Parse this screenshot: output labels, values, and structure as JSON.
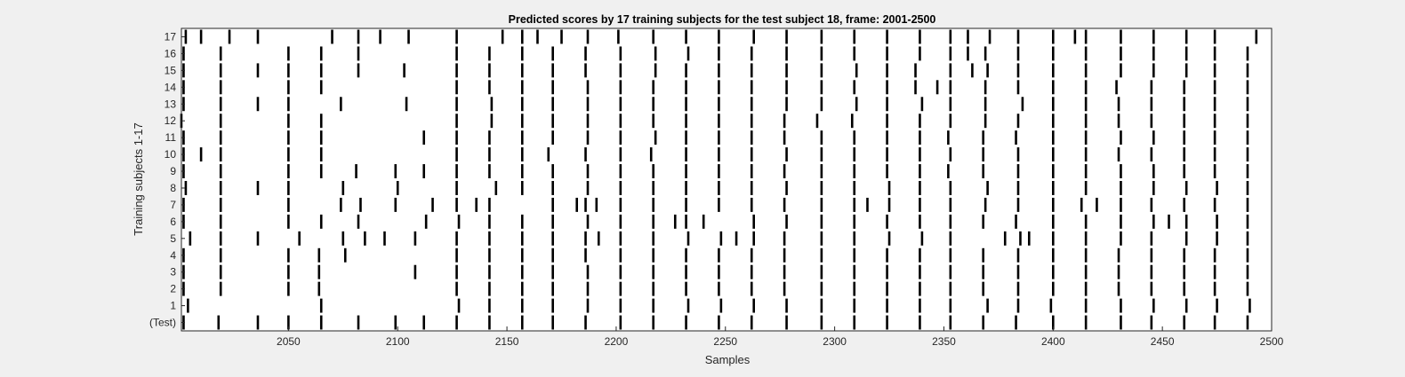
{
  "colors": {
    "figure_background": "#f0f0f0",
    "axes_background": "#ffffff",
    "event_line": "#000000",
    "text": "#262626"
  },
  "chart_data": {
    "type": "raster",
    "title": "Predicted scores by 17 training subjects for the test subject 18, frame: 2001-2500",
    "xlabel": "Samples",
    "ylabel": "Training subjects 1-17",
    "xlim": [
      2001,
      2500
    ],
    "xticks": [
      2050,
      2100,
      2150,
      2200,
      2250,
      2300,
      2350,
      2400,
      2450,
      2500
    ],
    "yticklabels": [
      "(Test)",
      "1",
      "2",
      "3",
      "4",
      "5",
      "6",
      "7",
      "8",
      "9",
      "10",
      "11",
      "12",
      "13",
      "14",
      "15",
      "16",
      "17"
    ],
    "grid": false,
    "legend": "none",
    "rows": [
      {
        "label": "(Test)",
        "events": [
          2002,
          2018,
          2036,
          2050,
          2065,
          2082,
          2099,
          2112,
          2127,
          2142,
          2157,
          2171,
          2186,
          2202,
          2217,
          2232,
          2247,
          2262,
          2278,
          2294,
          2309,
          2324,
          2339,
          2353,
          2368,
          2383,
          2400,
          2415,
          2431,
          2445,
          2460,
          2474,
          2489
        ]
      },
      {
        "label": "1",
        "events": [
          2004,
          2065,
          2128,
          2142,
          2157,
          2171,
          2187,
          2202,
          2217,
          2233,
          2248,
          2263,
          2278,
          2294,
          2309,
          2324,
          2339,
          2353,
          2370,
          2384,
          2399,
          2415,
          2431,
          2446,
          2461,
          2475,
          2490
        ]
      },
      {
        "label": "2",
        "events": [
          2002,
          2019,
          2050,
          2064,
          2127,
          2142,
          2157,
          2171,
          2187,
          2202,
          2217,
          2232,
          2247,
          2262,
          2277,
          2294,
          2309,
          2324,
          2339,
          2353,
          2368,
          2384,
          2400,
          2415,
          2430,
          2445,
          2460,
          2474,
          2489
        ]
      },
      {
        "label": "3",
        "events": [
          2002,
          2019,
          2050,
          2064,
          2108,
          2127,
          2142,
          2157,
          2171,
          2187,
          2202,
          2217,
          2232,
          2247,
          2262,
          2277,
          2294,
          2309,
          2324,
          2339,
          2353,
          2368,
          2384,
          2400,
          2415,
          2430,
          2445,
          2460,
          2474,
          2489
        ]
      },
      {
        "label": "4",
        "events": [
          2002,
          2019,
          2050,
          2064,
          2076,
          2127,
          2142,
          2157,
          2171,
          2186,
          2202,
          2217,
          2232,
          2247,
          2262,
          2277,
          2294,
          2309,
          2324,
          2339,
          2353,
          2368,
          2384,
          2400,
          2415,
          2430,
          2445,
          2460,
          2474,
          2489
        ]
      },
      {
        "label": "5",
        "events": [
          2005,
          2019,
          2036,
          2055,
          2075,
          2085,
          2094,
          2108,
          2127,
          2142,
          2157,
          2171,
          2186,
          2192,
          2202,
          2217,
          2233,
          2248,
          2255,
          2263,
          2277,
          2294,
          2309,
          2325,
          2340,
          2353,
          2378,
          2385,
          2389,
          2400,
          2415,
          2431,
          2445,
          2461,
          2475,
          2489
        ]
      },
      {
        "label": "6",
        "events": [
          2002,
          2019,
          2050,
          2065,
          2082,
          2113,
          2128,
          2142,
          2157,
          2171,
          2187,
          2202,
          2217,
          2227,
          2232,
          2240,
          2263,
          2278,
          2294,
          2309,
          2324,
          2339,
          2353,
          2368,
          2383,
          2400,
          2415,
          2431,
          2446,
          2453,
          2461,
          2475,
          2489
        ]
      },
      {
        "label": "7",
        "events": [
          2002,
          2019,
          2050,
          2074,
          2083,
          2099,
          2116,
          2127,
          2136,
          2142,
          2171,
          2182,
          2186,
          2191,
          2202,
          2217,
          2232,
          2247,
          2262,
          2277,
          2294,
          2309,
          2315,
          2325,
          2339,
          2353,
          2369,
          2384,
          2400,
          2413,
          2420,
          2431,
          2445,
          2460,
          2474,
          2489
        ]
      },
      {
        "label": "8",
        "events": [
          2003,
          2019,
          2036,
          2050,
          2075,
          2100,
          2127,
          2145,
          2157,
          2171,
          2187,
          2202,
          2217,
          2232,
          2247,
          2262,
          2278,
          2294,
          2309,
          2325,
          2339,
          2353,
          2370,
          2384,
          2400,
          2415,
          2431,
          2446,
          2461,
          2475,
          2489
        ]
      },
      {
        "label": "9",
        "events": [
          2002,
          2019,
          2050,
          2065,
          2081,
          2099,
          2112,
          2127,
          2142,
          2157,
          2171,
          2187,
          2202,
          2217,
          2232,
          2247,
          2262,
          2277,
          2294,
          2309,
          2324,
          2339,
          2352,
          2368,
          2384,
          2400,
          2415,
          2431,
          2446,
          2460,
          2474,
          2489
        ]
      },
      {
        "label": "10",
        "events": [
          2002,
          2010,
          2019,
          2050,
          2065,
          2127,
          2142,
          2157,
          2169,
          2186,
          2202,
          2216,
          2232,
          2247,
          2262,
          2278,
          2294,
          2309,
          2324,
          2339,
          2353,
          2368,
          2384,
          2400,
          2415,
          2430,
          2445,
          2460,
          2474,
          2489
        ]
      },
      {
        "label": "11",
        "events": [
          2002,
          2019,
          2050,
          2065,
          2112,
          2127,
          2142,
          2157,
          2171,
          2187,
          2202,
          2218,
          2232,
          2247,
          2262,
          2277,
          2294,
          2309,
          2324,
          2339,
          2352,
          2368,
          2383,
          2400,
          2415,
          2431,
          2446,
          2460,
          2474,
          2489
        ]
      },
      {
        "label": "12",
        "events": [
          2001,
          2019,
          2050,
          2065,
          2127,
          2143,
          2157,
          2171,
          2187,
          2202,
          2217,
          2232,
          2247,
          2262,
          2277,
          2292,
          2308,
          2324,
          2339,
          2353,
          2369,
          2384,
          2400,
          2415,
          2430,
          2445,
          2460,
          2474,
          2489
        ]
      },
      {
        "label": "13",
        "events": [
          2002,
          2019,
          2036,
          2050,
          2074,
          2104,
          2127,
          2143,
          2157,
          2171,
          2187,
          2202,
          2217,
          2232,
          2247,
          2262,
          2278,
          2294,
          2310,
          2324,
          2340,
          2353,
          2369,
          2386,
          2400,
          2415,
          2430,
          2445,
          2460,
          2474,
          2489
        ]
      },
      {
        "label": "14",
        "events": [
          2002,
          2019,
          2050,
          2065,
          2127,
          2142,
          2157,
          2171,
          2187,
          2202,
          2217,
          2232,
          2247,
          2262,
          2278,
          2294,
          2309,
          2324,
          2337,
          2347,
          2353,
          2369,
          2384,
          2400,
          2415,
          2429,
          2445,
          2460,
          2474,
          2489
        ]
      },
      {
        "label": "15",
        "events": [
          2002,
          2019,
          2036,
          2050,
          2065,
          2082,
          2103,
          2127,
          2142,
          2157,
          2171,
          2186,
          2202,
          2218,
          2232,
          2247,
          2262,
          2278,
          2294,
          2310,
          2324,
          2337,
          2353,
          2363,
          2370,
          2384,
          2400,
          2415,
          2431,
          2446,
          2461,
          2474,
          2489
        ]
      },
      {
        "label": "16",
        "events": [
          2002,
          2019,
          2050,
          2065,
          2082,
          2127,
          2142,
          2157,
          2171,
          2186,
          2202,
          2218,
          2233,
          2247,
          2262,
          2278,
          2294,
          2309,
          2324,
          2339,
          2353,
          2361,
          2369,
          2384,
          2400,
          2415,
          2431,
          2446,
          2461,
          2474,
          2489
        ]
      },
      {
        "label": "17",
        "events": [
          2003,
          2010,
          2023,
          2036,
          2070,
          2082,
          2092,
          2105,
          2127,
          2148,
          2157,
          2164,
          2175,
          2187,
          2201,
          2217,
          2232,
          2247,
          2263,
          2278,
          2294,
          2309,
          2324,
          2339,
          2353,
          2361,
          2371,
          2384,
          2400,
          2410,
          2415,
          2431,
          2446,
          2461,
          2474,
          2493
        ]
      }
    ]
  }
}
